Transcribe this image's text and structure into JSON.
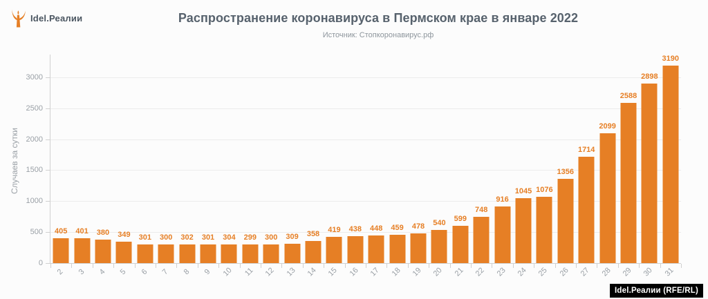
{
  "header": {
    "logo_text": "Idel.Реалии"
  },
  "chart_data": {
    "type": "bar",
    "title": "Распространение коронавируса в Пермском крае в январе 2022",
    "subtitle": "Источник: Стопкоронавирус.рф",
    "categories": [
      "2",
      "3",
      "4",
      "5",
      "6",
      "7",
      "8",
      "9",
      "10",
      "11",
      "12",
      "13",
      "14",
      "15",
      "16",
      "17",
      "18",
      "19",
      "20",
      "21",
      "22",
      "23",
      "24",
      "25",
      "26",
      "27",
      "28",
      "29",
      "30",
      "31"
    ],
    "values": [
      405,
      401,
      380,
      349,
      301,
      300,
      302,
      301,
      304,
      299,
      300,
      309,
      358,
      419,
      438,
      448,
      459,
      478,
      540,
      599,
      748,
      916,
      1045,
      1076,
      1356,
      1714,
      2099,
      2588,
      2898,
      3190
    ],
    "xlabel": "",
    "ylabel": "Случаев за сутки",
    "yticks": [
      0,
      500,
      1000,
      1500,
      2000,
      2500,
      3000
    ],
    "ylim": [
      0,
      3300
    ],
    "grid": true,
    "legend": false,
    "bar_color": "#E67F25",
    "value_label_color": "#E67F25",
    "title_color": "#57626d"
  },
  "footer": {
    "credit": "Idel.Реалии (RFE/RL)"
  }
}
